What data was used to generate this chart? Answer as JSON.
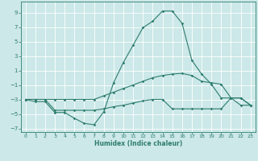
{
  "xlabel": "Humidex (Indice chaleur)",
  "background_color": "#cce8e8",
  "grid_color": "#ffffff",
  "line_color": "#2e7d6e",
  "xlim": [
    -0.5,
    23.5
  ],
  "ylim": [
    -7.5,
    10.5
  ],
  "xticks": [
    0,
    1,
    2,
    3,
    4,
    5,
    6,
    7,
    8,
    9,
    10,
    11,
    12,
    13,
    14,
    15,
    16,
    17,
    18,
    19,
    20,
    21,
    22,
    23
  ],
  "yticks": [
    -7,
    -5,
    -3,
    -1,
    1,
    3,
    5,
    7,
    9
  ],
  "line1_x": [
    0,
    1,
    2,
    3,
    4,
    5,
    6,
    7,
    8,
    9,
    10,
    11,
    12,
    13,
    14,
    15,
    16,
    17,
    18,
    19,
    20,
    21,
    22,
    23
  ],
  "line1_y": [
    -3.0,
    -3.3,
    -3.3,
    -4.8,
    -4.8,
    -5.6,
    -6.3,
    -6.5,
    -4.7,
    -0.7,
    2.1,
    4.5,
    6.9,
    7.8,
    9.2,
    9.2,
    7.5,
    2.4,
    0.5,
    -0.9,
    -2.8,
    -2.8,
    -3.8,
    -3.8
  ],
  "line2_x": [
    0,
    1,
    2,
    3,
    4,
    5,
    6,
    7,
    8,
    9,
    10,
    11,
    12,
    13,
    14,
    15,
    16,
    17,
    18,
    19,
    20,
    21,
    22,
    23
  ],
  "line2_y": [
    -3.0,
    -3.0,
    -3.0,
    -3.0,
    -3.0,
    -3.0,
    -3.0,
    -3.0,
    -2.5,
    -2.0,
    -1.5,
    -1.0,
    -0.5,
    0.0,
    0.3,
    0.5,
    0.6,
    0.3,
    -0.5,
    -0.7,
    -0.9,
    -2.8,
    -2.8,
    -3.8
  ],
  "line3_x": [
    0,
    1,
    2,
    3,
    4,
    5,
    6,
    7,
    8,
    9,
    10,
    11,
    12,
    13,
    14,
    15,
    16,
    17,
    18,
    19,
    20,
    21,
    22,
    23
  ],
  "line3_y": [
    -3.0,
    -3.0,
    -3.0,
    -4.5,
    -4.5,
    -4.5,
    -4.5,
    -4.5,
    -4.3,
    -4.0,
    -3.8,
    -3.5,
    -3.2,
    -3.0,
    -3.0,
    -4.3,
    -4.3,
    -4.3,
    -4.3,
    -4.3,
    -4.3,
    -2.8,
    -2.8,
    -3.8
  ]
}
